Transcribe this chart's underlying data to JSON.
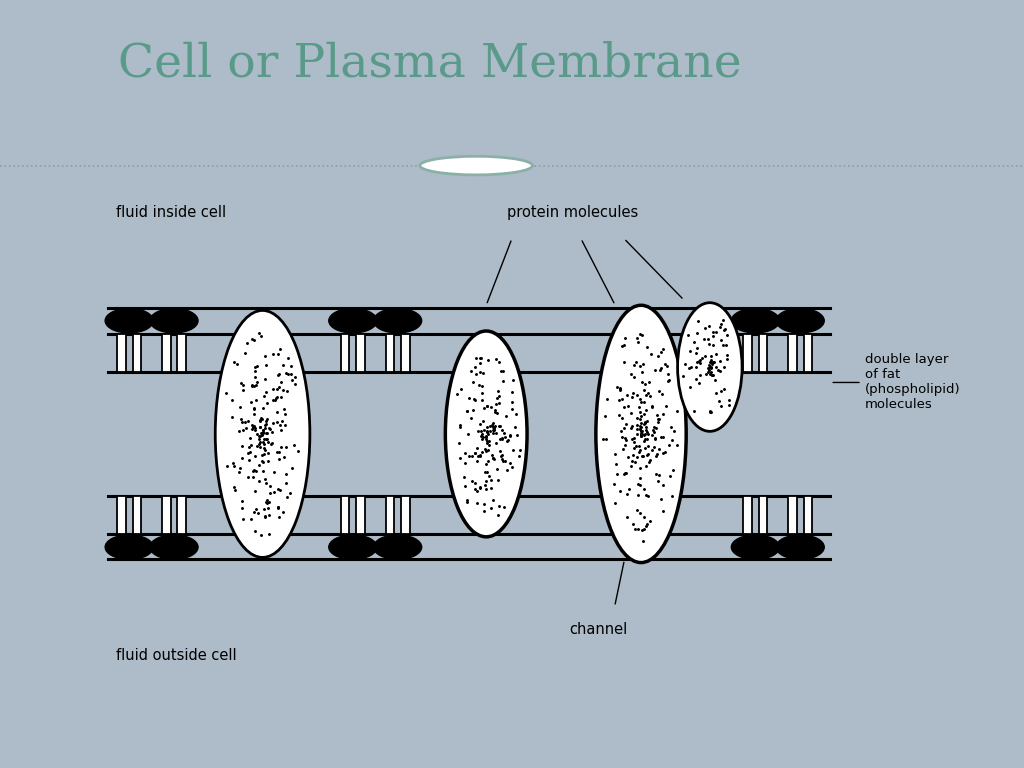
{
  "title": "Cell or Plasma Membrane",
  "title_color": "#5a9a8a",
  "title_fontsize": 34,
  "bg_color": "#adbcc8",
  "slide_bg": "#ffffff",
  "panel_bg": "#ffffff",
  "label_fluid_inside": "fluid inside cell",
  "label_fluid_outside": "fluid outside cell",
  "label_protein": "protein molecules",
  "label_channel": "channel",
  "label_double_layer": "double layer\nof fat\n(phospholipid)\nmolecules"
}
